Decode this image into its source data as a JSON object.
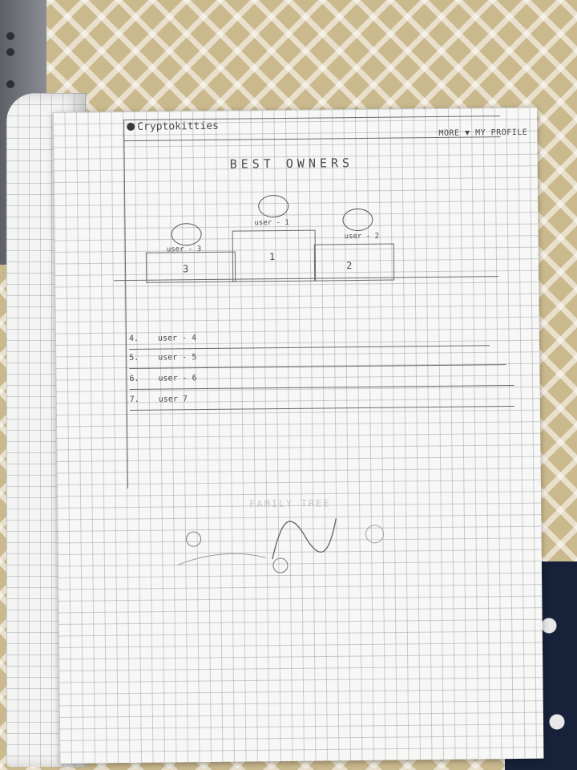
{
  "header": {
    "logo_text": "Cryptokitties",
    "nav_text": "MORE ▼ MY PROFILE"
  },
  "page_title": "BEST OWNERS",
  "podium": [
    {
      "rank": "1",
      "user": "user - 1"
    },
    {
      "rank": "2",
      "user": "user - 2"
    },
    {
      "rank": "3",
      "user": "user - 3"
    }
  ],
  "ranking_list": [
    {
      "rank": "4.",
      "user": "user - 4"
    },
    {
      "rank": "5.",
      "user": "user - 5"
    },
    {
      "rank": "6.",
      "user": "user - 6"
    },
    {
      "rank": "7.",
      "user": "user 7"
    }
  ],
  "family_tree_label": "FAMILY TREE"
}
